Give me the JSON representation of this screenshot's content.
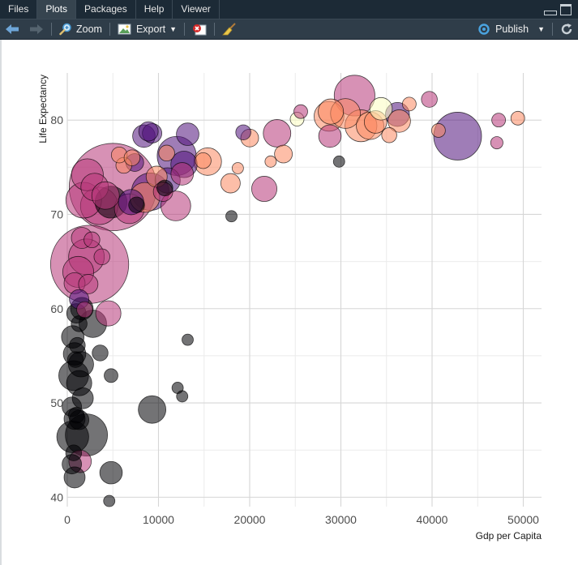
{
  "tabs": [
    {
      "label": "Files",
      "active": false
    },
    {
      "label": "Plots",
      "active": true
    },
    {
      "label": "Packages",
      "active": false
    },
    {
      "label": "Help",
      "active": false
    },
    {
      "label": "Viewer",
      "active": false
    }
  ],
  "toolbar": {
    "zoom_label": "Zoom",
    "export_label": "Export",
    "publish_label": "Publish"
  },
  "icons": {
    "back": "left-arrow-icon",
    "forward": "right-arrow-icon",
    "zoom": "magnifier-icon",
    "export": "image-export-icon",
    "remove": "remove-plot-icon",
    "clear": "broom-icon",
    "publish": "publish-icon",
    "refresh": "refresh-icon"
  },
  "colors": {
    "tabbar_bg": "#1c2a36",
    "toolbar_bg": "#2f3d49",
    "grid": "#d6d6d6",
    "axis_text": "#4d4d4d",
    "palette": [
      "#000004",
      "#51127c",
      "#b73779",
      "#fc8961",
      "#fcfdbf"
    ]
  },
  "chart_data": {
    "type": "scatter",
    "title": "",
    "xlabel": "Gdp per Capita",
    "ylabel": "Life Expectancy",
    "xlim": [
      0,
      52000
    ],
    "ylim": [
      39,
      85
    ],
    "xticks": [
      0,
      10000,
      20000,
      30000,
      40000,
      50000
    ],
    "xtick_labels": [
      "0",
      "10000",
      "20000",
      "30000",
      "40000",
      "50000"
    ],
    "yticks": [
      40,
      50,
      60,
      70,
      80
    ],
    "ytick_labels": [
      "40",
      "50",
      "60",
      "70",
      "80"
    ],
    "grid": true,
    "legend": "none",
    "size_encoding": "population",
    "color_encoding": "continent (magma palette)",
    "points": [
      [
        5000,
        72.9,
        600,
        2
      ],
      [
        2450,
        64.7,
        480,
        2
      ],
      [
        12000,
        76.2,
        120,
        1
      ],
      [
        42800,
        78.3,
        180,
        1
      ],
      [
        31500,
        82.6,
        130,
        2
      ],
      [
        9100,
        72.4,
        110,
        1
      ],
      [
        1800,
        71.5,
        100,
        2
      ],
      [
        3500,
        70.9,
        110,
        2
      ],
      [
        2200,
        74.2,
        80,
        2
      ],
      [
        3000,
        72.9,
        60,
        2
      ],
      [
        1200,
        63.9,
        75,
        2
      ],
      [
        2100,
        65.5,
        100,
        2
      ],
      [
        2100,
        46.6,
        140,
        0
      ],
      [
        600,
        46.4,
        80,
        0
      ],
      [
        700,
        52.9,
        70,
        0
      ],
      [
        1300,
        52.1,
        50,
        0
      ],
      [
        1500,
        54.1,
        50,
        0
      ],
      [
        9300,
        49.3,
        60,
        0
      ],
      [
        2800,
        58.4,
        60,
        0
      ],
      [
        1600,
        60.0,
        40,
        0
      ],
      [
        800,
        62.7,
        35,
        2
      ],
      [
        2300,
        62.6,
        30,
        2
      ],
      [
        4500,
        59.5,
        50,
        2
      ],
      [
        4800,
        71.3,
        80,
        0
      ],
      [
        4200,
        72.0,
        60,
        2
      ],
      [
        7000,
        71.3,
        50,
        1
      ],
      [
        6800,
        70.6,
        70,
        2
      ],
      [
        8500,
        71.8,
        70,
        3
      ],
      [
        11900,
        70.9,
        70,
        2
      ],
      [
        11000,
        73.6,
        50,
        1
      ],
      [
        10500,
        72.4,
        30,
        2
      ],
      [
        12800,
        75.3,
        55,
        1
      ],
      [
        15400,
        75.6,
        60,
        3
      ],
      [
        13200,
        78.5,
        40,
        1
      ],
      [
        9300,
        78.6,
        30,
        1
      ],
      [
        8400,
        78.3,
        40,
        1
      ],
      [
        21600,
        72.7,
        50,
        2
      ],
      [
        23000,
        78.6,
        60,
        2
      ],
      [
        28700,
        80.4,
        70,
        3
      ],
      [
        28900,
        80.9,
        50,
        3
      ],
      [
        30500,
        80.7,
        70,
        3
      ],
      [
        32200,
        79.4,
        80,
        3
      ],
      [
        33200,
        79.4,
        60,
        3
      ],
      [
        33800,
        79.8,
        40,
        3
      ],
      [
        34400,
        81.2,
        40,
        4
      ],
      [
        36200,
        80.6,
        45,
        1
      ],
      [
        36400,
        79.9,
        40,
        3
      ],
      [
        28800,
        78.3,
        40,
        2
      ],
      [
        17900,
        73.3,
        30,
        3
      ],
      [
        20000,
        78.1,
        25,
        3
      ],
      [
        23700,
        76.4,
        25,
        3
      ],
      [
        25200,
        80.1,
        15,
        4
      ],
      [
        25600,
        80.9,
        15,
        2
      ],
      [
        39700,
        82.2,
        20,
        2
      ],
      [
        47300,
        80.0,
        15,
        2
      ],
      [
        49400,
        80.2,
        15,
        3
      ],
      [
        37500,
        81.7,
        15,
        3
      ],
      [
        35300,
        78.4,
        18,
        3
      ],
      [
        40700,
        78.9,
        15,
        3
      ],
      [
        47100,
        77.6,
        12,
        2
      ],
      [
        22300,
        75.6,
        10,
        3
      ],
      [
        18700,
        74.9,
        10,
        3
      ],
      [
        19300,
        78.7,
        18,
        1
      ],
      [
        800,
        55.2,
        40,
        0
      ],
      [
        600,
        57.0,
        40,
        0
      ],
      [
        1000,
        59.5,
        30,
        0
      ],
      [
        500,
        49.6,
        30,
        0
      ],
      [
        800,
        48.3,
        35,
        0
      ],
      [
        1300,
        48.2,
        30,
        0
      ],
      [
        1700,
        50.5,
        35,
        0
      ],
      [
        3600,
        55.3,
        20,
        0
      ],
      [
        4800,
        42.6,
        40,
        0
      ],
      [
        800,
        42.1,
        35,
        0
      ],
      [
        500,
        43.5,
        30,
        0
      ],
      [
        1400,
        43.8,
        40,
        2
      ],
      [
        700,
        44.7,
        20,
        0
      ],
      [
        1000,
        48.7,
        20,
        0
      ],
      [
        1300,
        58.4,
        20,
        0
      ],
      [
        1300,
        61.0,
        30,
        1
      ],
      [
        1900,
        59.9,
        20,
        2
      ],
      [
        1100,
        56.1,
        20,
        0
      ],
      [
        900,
        54.6,
        20,
        0
      ],
      [
        4800,
        52.9,
        15,
        0
      ],
      [
        12100,
        51.6,
        10,
        0
      ],
      [
        12600,
        50.7,
        10,
        0
      ],
      [
        13200,
        56.7,
        10,
        0
      ],
      [
        4600,
        39.6,
        10,
        0
      ],
      [
        18000,
        69.8,
        10,
        0
      ],
      [
        29800,
        75.6,
        10,
        0
      ],
      [
        2700,
        67.3,
        20,
        2
      ],
      [
        1600,
        67.5,
        35,
        2
      ],
      [
        3800,
        65.5,
        20,
        2
      ],
      [
        6200,
        75.2,
        20,
        3
      ],
      [
        5700,
        76.3,
        20,
        3
      ],
      [
        7400,
        75.5,
        25,
        1
      ],
      [
        9800,
        74.0,
        35,
        3
      ],
      [
        10700,
        72.8,
        20,
        0
      ],
      [
        10900,
        76.5,
        20,
        3
      ],
      [
        7600,
        71.0,
        20,
        0
      ],
      [
        8900,
        78.8,
        30,
        1
      ],
      [
        12600,
        74.3,
        40,
        2
      ],
      [
        14900,
        75.7,
        20,
        3
      ],
      [
        7100,
        76.0,
        20,
        3
      ]
    ]
  }
}
